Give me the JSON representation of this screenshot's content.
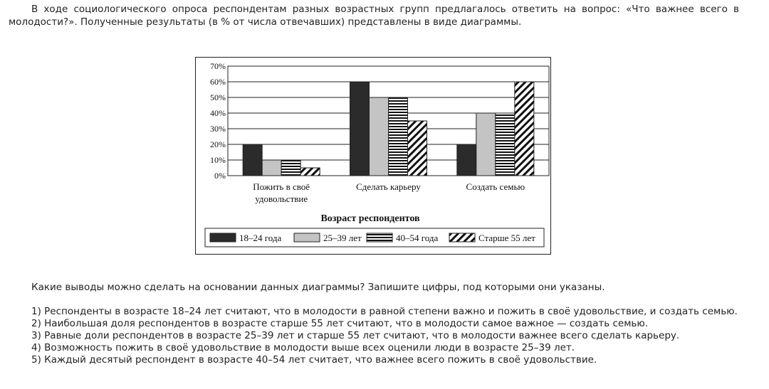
{
  "intro_text": "В ходе социологического опроса респондентам разных возрастных групп предлагалось ответить на вопрос: «Что важнее всего в молодости?». Полученные результаты (в % от числа отвечавших) представлены в виде диаграммы.",
  "question_text": "Какие выводы можно сделать на основании данных диаграммы? Запишите цифры, под которыми они указаны.",
  "options": [
    {
      "num": "1)",
      "text": "Респонденты в возрасте 18–24 лет считают, что в молодости в равной степени важно и пожить в своё удовольствие, и создать семью."
    },
    {
      "num": "2)",
      "text": "Наибольшая доля респондентов в возрасте старше 55 лет считают, что в молодости самое важное — создать семью."
    },
    {
      "num": "3)",
      "text": "Равные доли респондентов в возрасте 25–39 лет и старше 55 лет считают, что в молодости важнее всего сделать карьеру."
    },
    {
      "num": "4)",
      "text": "Возможность пожить в своё удовольствие в молодости выше всех оценили люди в возрасте 25–39 лет."
    },
    {
      "num": "5)",
      "text": "Каждый десятый респондент в возрасте 40–54 лет считает, что важнее всего пожить в своё удовольствие."
    }
  ],
  "chart_data": {
    "type": "bar",
    "categories": [
      [
        "Пожить в своё",
        "удовольствие"
      ],
      [
        "Сделать карьеру"
      ],
      [
        "Создать семью"
      ]
    ],
    "series": [
      {
        "name": "18–24 года",
        "values": [
          20,
          60,
          20
        ],
        "pattern": "solid-dark"
      },
      {
        "name": "25–39 лет",
        "values": [
          10,
          50,
          40
        ],
        "pattern": "solid-light"
      },
      {
        "name": "40–54 года",
        "values": [
          10,
          50,
          40
        ],
        "pattern": "horizontal-stripes"
      },
      {
        "name": "Старше 55 лет",
        "values": [
          5,
          35,
          60
        ],
        "pattern": "diagonal-stripes"
      }
    ],
    "yticks": [
      "0%",
      "10%",
      "20%",
      "30%",
      "40%",
      "50%",
      "60%",
      "70%"
    ],
    "ylim": [
      0,
      70
    ],
    "xlabel": "Возраст респондентов",
    "grid": true,
    "legend_position": "bottom",
    "colors": {
      "dark": "#2b2b2b",
      "light": "#c4c4c4",
      "stroke": "#222222"
    }
  }
}
